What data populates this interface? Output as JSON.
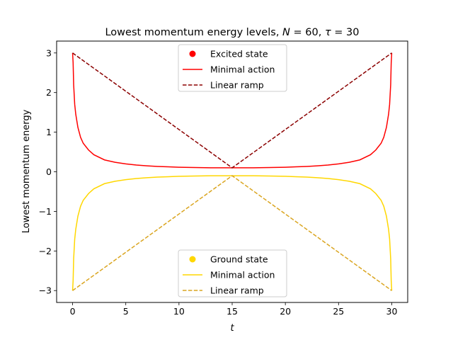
{
  "chart_data": {
    "type": "line",
    "title": "Lowest momentum energy levels, N = 60, τ = 30",
    "title_parts": {
      "prefix": "Lowest momentum energy levels, ",
      "var1": "N",
      "eq1": " = 60, ",
      "var2": "τ",
      "eq2": " = 30"
    },
    "xlabel": "t",
    "ylabel": "Lowest momentum energy",
    "xlim": [
      -1.5,
      31.5
    ],
    "ylim": [
      -3.3,
      3.3
    ],
    "x_ticks": [
      0,
      5,
      10,
      15,
      20,
      25,
      30
    ],
    "y_ticks": [
      -3,
      -2,
      -1,
      0,
      1,
      2,
      3
    ],
    "y_tick_labels": [
      "−3",
      "−2",
      "−1",
      "0",
      "1",
      "2",
      "3"
    ],
    "grid": false,
    "legends": [
      {
        "placement": "upper-center",
        "entries": [
          {
            "label": "Excited state",
            "marker": "dot",
            "color": "#ff0000"
          },
          {
            "label": "Minimal action",
            "style": "solid",
            "color": "#ff0000"
          },
          {
            "label": "Linear ramp",
            "style": "dashed",
            "color": "#8b0000"
          }
        ]
      },
      {
        "placement": "lower-center",
        "entries": [
          {
            "label": "Ground state",
            "marker": "dot",
            "color": "#ffd700"
          },
          {
            "label": "Minimal action",
            "style": "solid",
            "color": "#ffd700"
          },
          {
            "label": "Linear ramp",
            "style": "dashed",
            "color": "#daa520"
          }
        ]
      }
    ],
    "series": [
      {
        "name": "Minimal action",
        "state": "excited",
        "style": "solid",
        "color": "#ff0000",
        "x": [
          0,
          0.05,
          0.1,
          0.2,
          0.3,
          0.5,
          0.75,
          1,
          1.5,
          2,
          3,
          4,
          5,
          6,
          7,
          8,
          9,
          10,
          11,
          12,
          13,
          14,
          15,
          16,
          17,
          18,
          19,
          20,
          21,
          22,
          23,
          24,
          25,
          26,
          27,
          28,
          28.5,
          29,
          29.25,
          29.5,
          29.7,
          29.8,
          29.9,
          29.95,
          30
        ],
        "y": [
          3,
          2.75,
          2.2,
          1.7,
          1.45,
          1.12,
          0.87,
          0.72,
          0.55,
          0.43,
          0.3,
          0.24,
          0.2,
          0.17,
          0.15,
          0.135,
          0.125,
          0.115,
          0.11,
          0.105,
          0.1,
          0.1,
          0.1,
          0.1,
          0.1,
          0.105,
          0.11,
          0.115,
          0.125,
          0.135,
          0.15,
          0.17,
          0.2,
          0.24,
          0.3,
          0.43,
          0.55,
          0.72,
          0.87,
          1.12,
          1.45,
          1.7,
          2.2,
          2.75,
          3
        ]
      },
      {
        "name": "Linear ramp",
        "state": "excited",
        "style": "dashed",
        "color": "#8b0000",
        "x": [
          0,
          15,
          30
        ],
        "y": [
          3,
          0.1,
          3
        ]
      },
      {
        "name": "Minimal action",
        "state": "ground",
        "style": "solid",
        "color": "#ffd700",
        "x": [
          0,
          0.05,
          0.1,
          0.2,
          0.3,
          0.5,
          0.75,
          1,
          1.5,
          2,
          3,
          4,
          5,
          6,
          7,
          8,
          9,
          10,
          11,
          12,
          13,
          14,
          15,
          16,
          17,
          18,
          19,
          20,
          21,
          22,
          23,
          24,
          25,
          26,
          27,
          28,
          28.5,
          29,
          29.25,
          29.5,
          29.7,
          29.8,
          29.9,
          29.95,
          30
        ],
        "y": [
          -3,
          -2.75,
          -2.2,
          -1.7,
          -1.45,
          -1.12,
          -0.87,
          -0.72,
          -0.55,
          -0.43,
          -0.3,
          -0.24,
          -0.2,
          -0.17,
          -0.15,
          -0.135,
          -0.125,
          -0.115,
          -0.11,
          -0.105,
          -0.1,
          -0.1,
          -0.1,
          -0.1,
          -0.1,
          -0.105,
          -0.11,
          -0.115,
          -0.125,
          -0.135,
          -0.15,
          -0.17,
          -0.2,
          -0.24,
          -0.3,
          -0.43,
          -0.55,
          -0.72,
          -0.87,
          -1.12,
          -1.45,
          -1.7,
          -2.2,
          -2.75,
          -3
        ]
      },
      {
        "name": "Linear ramp",
        "state": "ground",
        "style": "dashed",
        "color": "#daa520",
        "x": [
          0,
          15,
          30
        ],
        "y": [
          -3,
          -0.1,
          -3
        ]
      }
    ]
  }
}
